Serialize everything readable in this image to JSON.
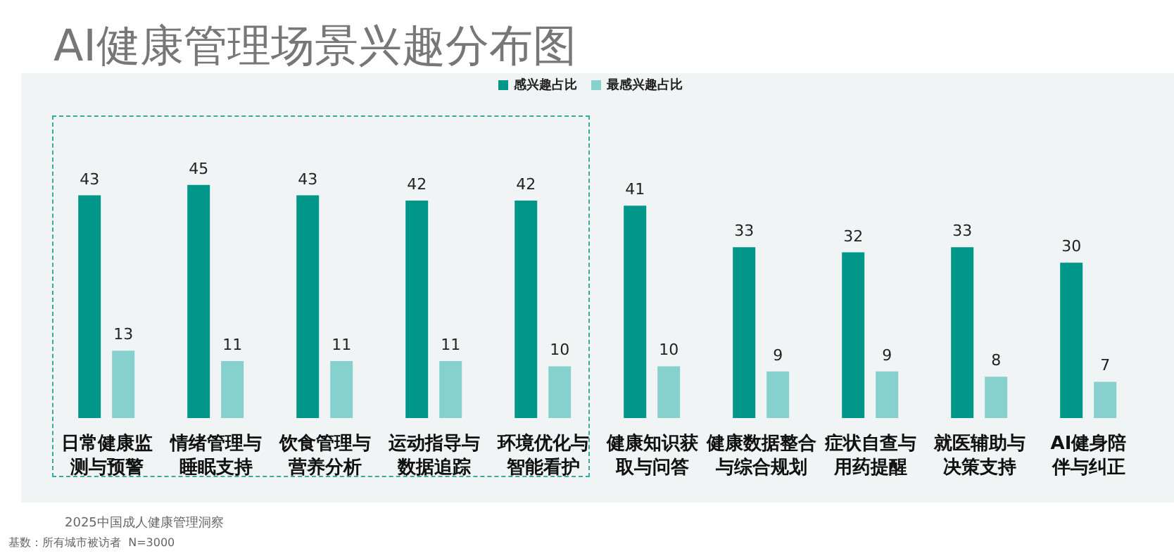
{
  "chart_data": {
    "type": "bar",
    "title": "AI健康管理场景兴趣分布图",
    "categories": [
      "日常健康监测与预警",
      "情绪管理与睡眠支持",
      "饮食管理与营养分析",
      "运动指导与数据追踪",
      "环境优化与智能看护",
      "健康知识获取与问答",
      "健康数据整合与综合规划",
      "症状自查与用药提醒",
      "就医辅助与决策支持",
      "AI健身陪伴与纠正"
    ],
    "series": [
      {
        "name": "感兴趣占比",
        "color": "#00968a",
        "values": [
          43,
          45,
          43,
          42,
          42,
          41,
          33,
          32,
          33,
          30
        ]
      },
      {
        "name": "最感兴趣占比",
        "color": "#86d0cd",
        "values": [
          13,
          11,
          11,
          11,
          10,
          10,
          9,
          9,
          8,
          7
        ]
      }
    ],
    "data_labels": true,
    "legend": "top",
    "annotations": [
      "2025中国成人健康管理洞察",
      "基数：所有城市被访者  N=3000"
    ]
  }
}
